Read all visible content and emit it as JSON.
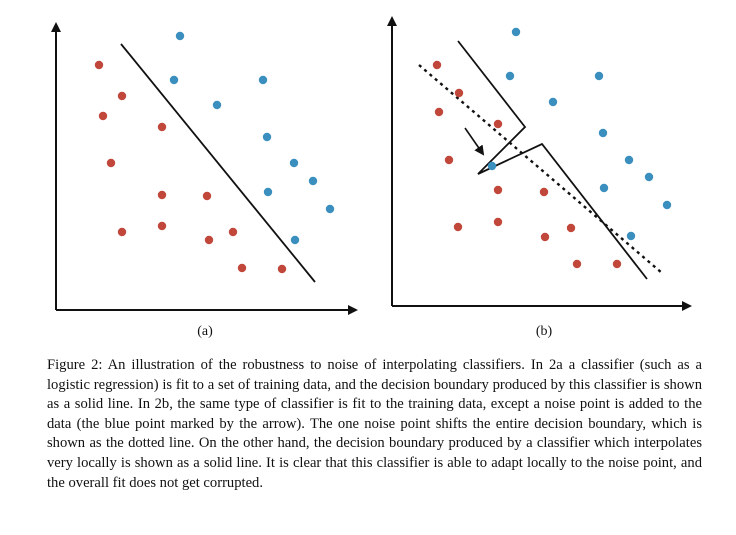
{
  "figure": {
    "panels": [
      {
        "label": "(a)",
        "red_points": [
          [
            99,
            65
          ],
          [
            122,
            96
          ],
          [
            103,
            116
          ],
          [
            162,
            127
          ],
          [
            111,
            163
          ],
          [
            162,
            195
          ],
          [
            207,
            196
          ],
          [
            162,
            226
          ],
          [
            122,
            232
          ],
          [
            209,
            240
          ],
          [
            233,
            232
          ],
          [
            242,
            268
          ],
          [
            282,
            269
          ]
        ],
        "blue_points": [
          [
            180,
            36
          ],
          [
            174,
            80
          ],
          [
            263,
            80
          ],
          [
            217,
            105
          ],
          [
            267,
            137
          ],
          [
            294,
            163
          ],
          [
            313,
            181
          ],
          [
            268,
            192
          ],
          [
            330,
            209
          ],
          [
            295,
            240
          ]
        ],
        "colors": {
          "red": "#c0473a",
          "blue": "#3a8fbf",
          "line": "#111111"
        }
      },
      {
        "label": "(b)",
        "red_points": [
          [
            437,
            65
          ],
          [
            459,
            93
          ],
          [
            439,
            112
          ],
          [
            498,
            124
          ],
          [
            449,
            160
          ],
          [
            498,
            190
          ],
          [
            544,
            192
          ],
          [
            498,
            222
          ],
          [
            458,
            227
          ],
          [
            545,
            237
          ],
          [
            571,
            228
          ],
          [
            577,
            264
          ],
          [
            617,
            264
          ]
        ],
        "blue_points": [
          [
            516,
            32
          ],
          [
            510,
            76
          ],
          [
            599,
            76
          ],
          [
            553,
            102
          ],
          [
            603,
            133
          ],
          [
            629,
            160
          ],
          [
            649,
            177
          ],
          [
            604,
            188
          ],
          [
            667,
            205
          ],
          [
            631,
            236
          ],
          [
            492,
            166
          ]
        ],
        "colors": {
          "red": "#c0473a",
          "blue": "#3a8fbf",
          "line": "#111111"
        }
      }
    ]
  },
  "caption": "Figure 2: An illustration of the robustness to noise of interpolating classifiers. In 2a a classifier (such as a logistic regression) is fit to a set of training data, and the decision boundary produced by this classifier is shown as a solid line. In 2b, the same type of classifier is fit to the training data, except a noise point is added to the data (the blue point marked by the arrow). The one noise point shifts the entire decision boundary, which is shown as the dotted line. On the other hand, the decision boundary produced by a classifier which interpolates very locally is shown as a solid line. It is clear that this classifier is able to adapt locally to the noise point, and the overall fit does not get corrupted."
}
